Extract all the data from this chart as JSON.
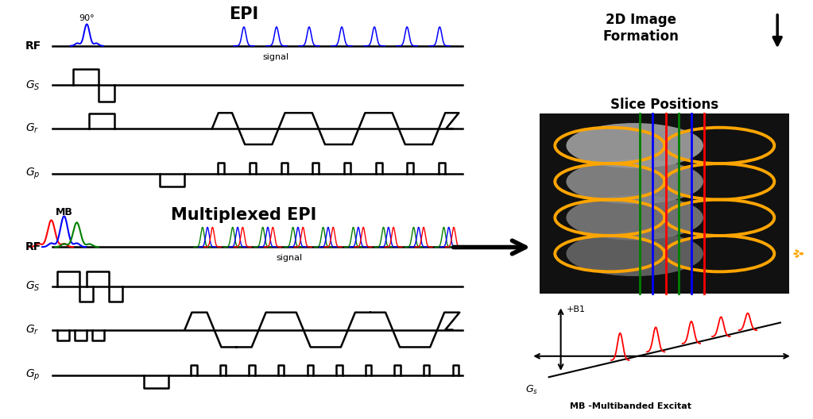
{
  "title_epi": "EPI",
  "title_mux": "Multiplexed EPI",
  "title_2d": "2D Image\nFormation",
  "title_slice": "Slice Positions",
  "title_mb": "MB -Multibanded Excitat",
  "bg_color": "#ffffff",
  "black": "#000000",
  "blue": "#0000ff",
  "red": "#ff0000",
  "green": "#008000",
  "orange": "#ffa500"
}
